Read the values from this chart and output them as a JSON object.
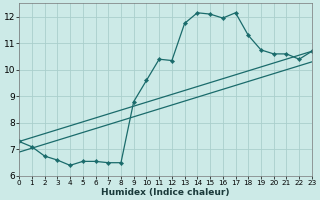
{
  "xlabel": "Humidex (Indice chaleur)",
  "xlim": [
    0,
    23
  ],
  "ylim": [
    6,
    12.5
  ],
  "bg_color": "#cceae7",
  "grid_color": "#aacfcc",
  "line_color": "#1a6b6b",
  "xticks": [
    0,
    1,
    2,
    3,
    4,
    5,
    6,
    7,
    8,
    9,
    10,
    11,
    12,
    13,
    14,
    15,
    16,
    17,
    18,
    19,
    20,
    21,
    22,
    23
  ],
  "yticks": [
    6,
    7,
    8,
    9,
    10,
    11,
    12
  ],
  "series": {
    "line1_x": [
      0,
      1,
      2,
      3,
      4,
      5,
      6,
      7,
      8,
      9,
      10,
      11,
      12,
      13,
      14,
      15,
      16,
      17,
      18,
      19,
      20,
      21,
      22,
      23
    ],
    "line1_y": [
      7.3,
      7.1,
      6.75,
      6.6,
      6.4,
      6.55,
      6.55,
      6.5,
      6.5,
      8.8,
      9.6,
      10.4,
      10.35,
      11.75,
      12.15,
      12.1,
      11.95,
      12.15,
      11.3,
      10.75,
      10.6,
      10.6,
      10.4,
      10.7
    ],
    "line2_x": [
      0,
      23
    ],
    "line2_y": [
      7.3,
      10.7
    ],
    "line3_x": [
      0,
      23
    ],
    "line3_y": [
      6.9,
      10.3
    ]
  }
}
